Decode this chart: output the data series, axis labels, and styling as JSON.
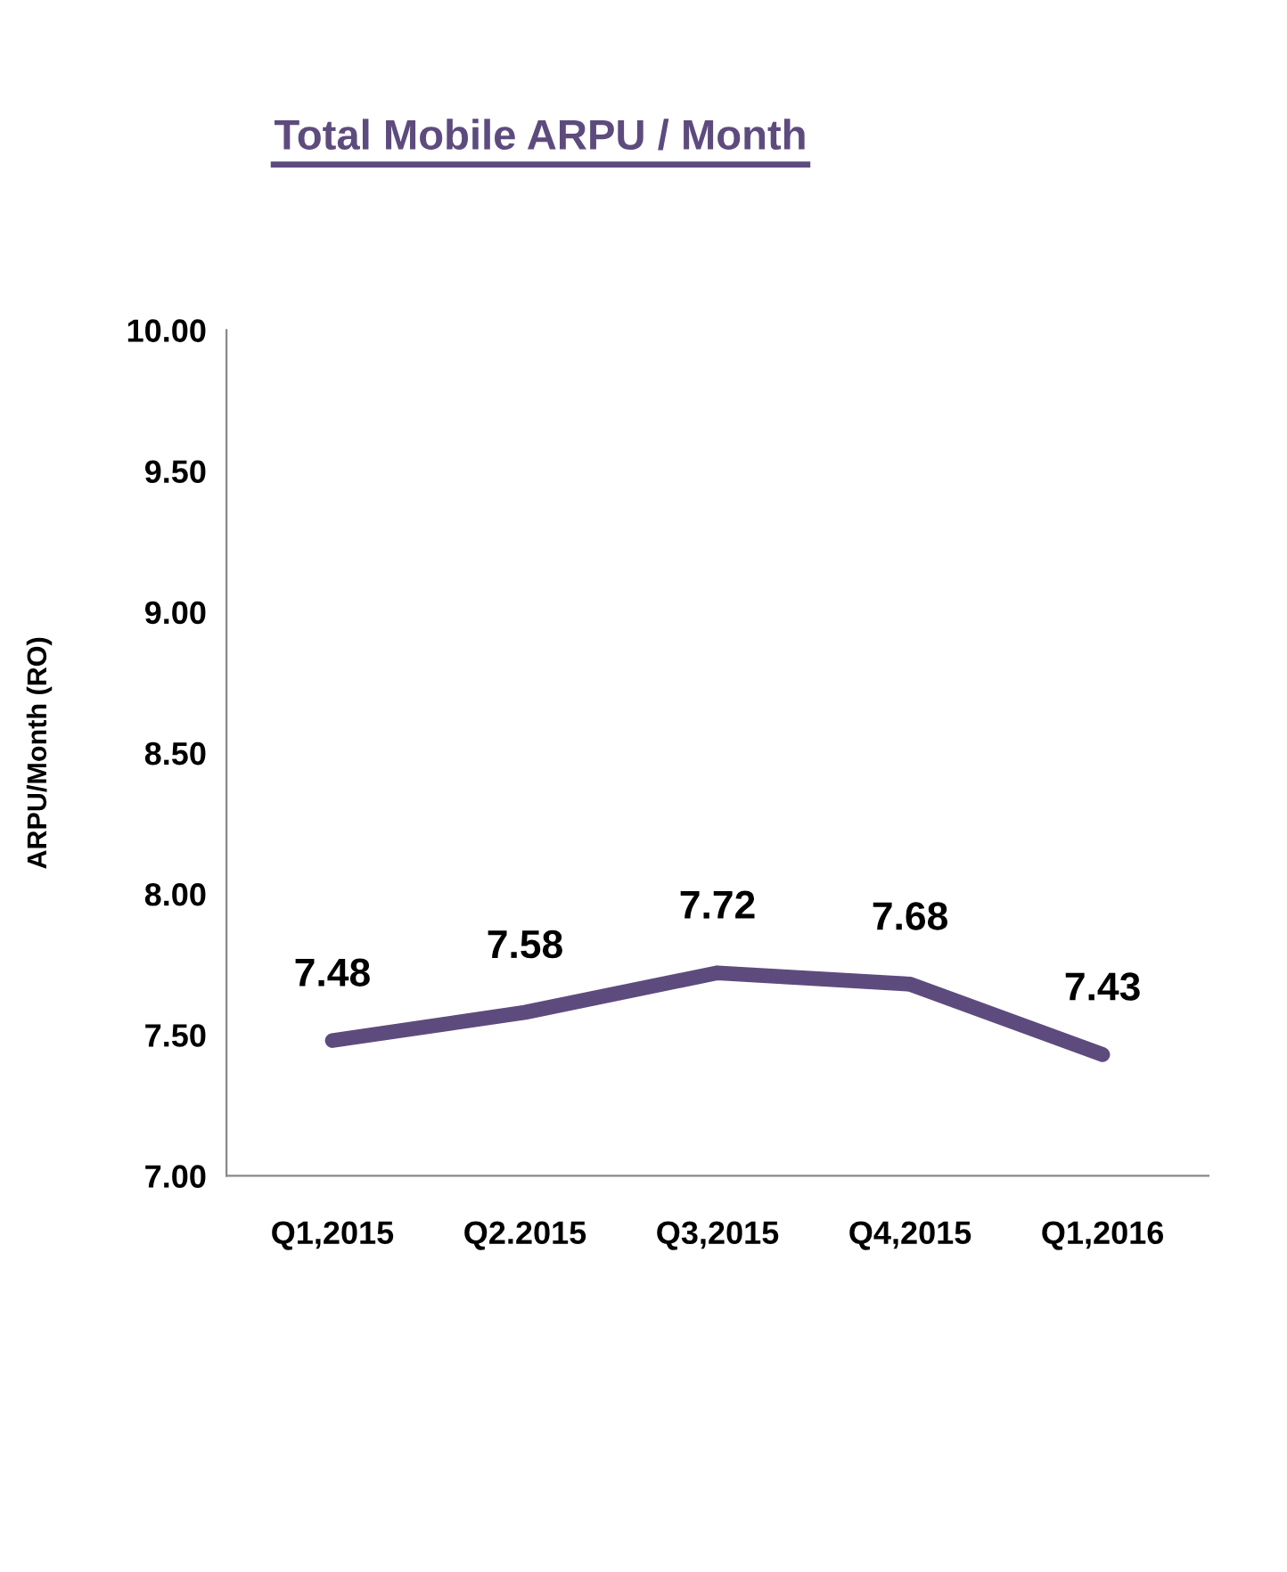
{
  "chart_data": {
    "type": "line",
    "title": "Total Mobile ARPU / Month",
    "ylabel": "ARPU/Month (RO)",
    "categories": [
      "Q1,2015",
      "Q2.2015",
      "Q3,2015",
      "Q4,2015",
      "Q1,2016"
    ],
    "series": [
      {
        "color": "#5e4b7e",
        "values": [
          7.48,
          7.58,
          7.72,
          7.68,
          7.43
        ]
      }
    ],
    "ylim": [
      7.0,
      10.0
    ],
    "yticks": [
      {
        "value": 7.0,
        "label": "7.00"
      },
      {
        "value": 7.5,
        "label": "7.50"
      },
      {
        "value": 8.0,
        "label": "8.00"
      },
      {
        "value": 8.5,
        "label": "8.50"
      },
      {
        "value": 9.0,
        "label": "9.00"
      },
      {
        "value": 9.5,
        "label": "9.50"
      },
      {
        "value": 10.0,
        "label": "10.00"
      }
    ],
    "data_labels": true,
    "grid": false,
    "legend": false,
    "marker": "none",
    "line_style": "solid"
  }
}
